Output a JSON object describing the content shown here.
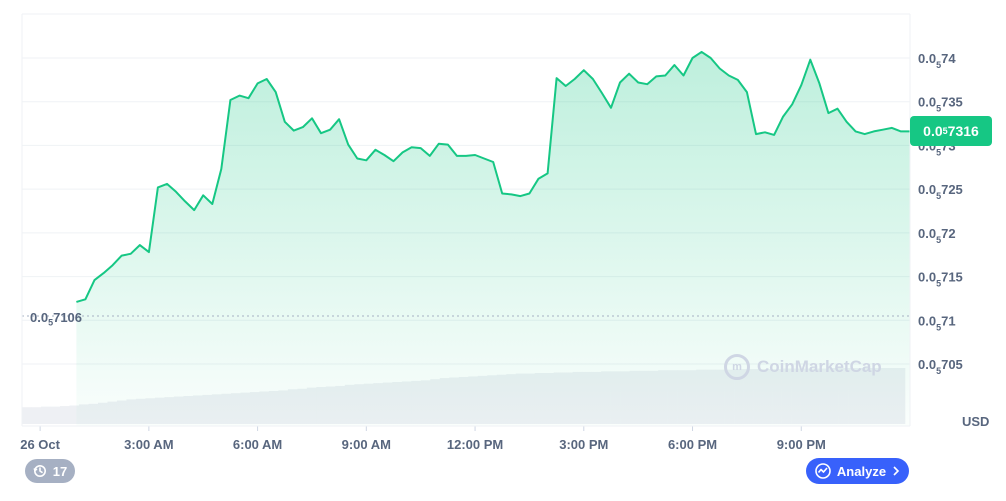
{
  "chart_data": {
    "type": "area",
    "title": "",
    "xlabel": "",
    "ylabel": "",
    "currency_label": "USD",
    "x_ticks": [
      "26 Oct",
      "3:00 AM",
      "6:00 AM",
      "9:00 AM",
      "12:00 PM",
      "3:00 PM",
      "6:00 PM",
      "9:00 PM"
    ],
    "x_tick_hours": [
      0,
      3,
      6,
      9,
      12,
      15,
      18,
      21
    ],
    "x_range_hours": [
      -0.5,
      24.0
    ],
    "y_ticks": [
      {
        "prefix": "0.0",
        "sub": "5",
        "rest": "74",
        "value": 7.4e-06
      },
      {
        "prefix": "0.0",
        "sub": "5",
        "rest": "735",
        "value": 7.35e-06
      },
      {
        "prefix": "0.0",
        "sub": "5",
        "rest": "73",
        "value": 7.3e-06
      },
      {
        "prefix": "0.0",
        "sub": "5",
        "rest": "725",
        "value": 7.25e-06
      },
      {
        "prefix": "0.0",
        "sub": "5",
        "rest": "72",
        "value": 7.2e-06
      },
      {
        "prefix": "0.0",
        "sub": "5",
        "rest": "715",
        "value": 7.15e-06
      },
      {
        "prefix": "0.0",
        "sub": "5",
        "rest": "71",
        "value": 7.1e-06
      },
      {
        "prefix": "0.0",
        "sub": "5",
        "rest": "705",
        "value": 7.05e-06
      }
    ],
    "y_unit_note": "values in units of 1e-6 USD",
    "ylim": [
      7.0,
      7.42
    ],
    "open_price": {
      "prefix": "0.0",
      "sub": "5",
      "rest": "7106",
      "value": 7.106
    },
    "current_price": {
      "prefix": "0.0",
      "sub": "5",
      "rest": "7316",
      "value": 7.316
    },
    "series": [
      {
        "x": [
          1.0,
          1.25,
          1.5,
          1.75,
          2.0,
          2.25,
          2.5,
          2.75,
          3.0,
          3.25,
          3.5,
          3.75,
          4.0,
          4.25,
          4.5,
          4.75,
          5.0,
          5.25,
          5.5,
          5.75,
          6.0,
          6.25,
          6.5,
          6.75,
          7.0,
          7.25,
          7.5,
          7.75,
          8.0,
          8.25,
          8.5,
          8.75,
          9.0,
          9.25,
          9.5,
          9.75,
          10.0,
          10.25,
          10.5,
          10.75,
          11.0,
          11.25,
          11.5,
          11.75,
          12.0,
          12.25,
          12.5,
          12.75,
          13.0,
          13.25,
          13.5,
          13.75,
          14.0,
          14.25,
          14.5,
          14.75,
          15.0,
          15.25,
          15.5,
          15.75,
          16.0,
          16.25,
          16.5,
          16.75,
          17.0,
          17.25,
          17.5,
          17.75,
          18.0,
          18.25,
          18.5,
          18.75,
          19.0,
          19.25,
          19.5,
          19.75,
          20.0,
          20.25,
          20.5,
          20.75,
          21.0,
          21.25,
          21.5,
          21.75,
          22.0,
          22.25,
          22.5,
          22.75,
          23.0,
          23.25,
          23.5,
          23.75,
          24.0
        ],
        "values": [
          7.121,
          7.124,
          7.146,
          7.154,
          7.163,
          7.174,
          7.176,
          7.186,
          7.178,
          7.252,
          7.256,
          7.247,
          7.236,
          7.226,
          7.243,
          7.233,
          7.273,
          7.352,
          7.357,
          7.354,
          7.371,
          7.376,
          7.361,
          7.327,
          7.317,
          7.321,
          7.331,
          7.314,
          7.318,
          7.33,
          7.301,
          7.285,
          7.283,
          7.295,
          7.289,
          7.282,
          7.292,
          7.298,
          7.297,
          7.288,
          7.302,
          7.301,
          7.288,
          7.288,
          7.289,
          7.285,
          7.281,
          7.245,
          7.244,
          7.242,
          7.245,
          7.262,
          7.268,
          7.377,
          7.368,
          7.376,
          7.386,
          7.376,
          7.36,
          7.343,
          7.372,
          7.382,
          7.372,
          7.37,
          7.379,
          7.38,
          7.392,
          7.38,
          7.4,
          7.407,
          7.4,
          7.388,
          7.38,
          7.375,
          7.361,
          7.313,
          7.315,
          7.312,
          7.333,
          7.347,
          7.369,
          7.398,
          7.371,
          7.337,
          7.342,
          7.327,
          7.316,
          7.313,
          7.316,
          7.318,
          7.32,
          7.316,
          7.316
        ]
      }
    ],
    "volume": {
      "note": "relative volume bars, cumulative style",
      "values": [
        0.3,
        0.3,
        0.31,
        0.31,
        0.32,
        0.33,
        0.35,
        0.36,
        0.38,
        0.4,
        0.42,
        0.44,
        0.45,
        0.46,
        0.47,
        0.48,
        0.49,
        0.5,
        0.51,
        0.52,
        0.53,
        0.54,
        0.55,
        0.56,
        0.57,
        0.58,
        0.59,
        0.6,
        0.62,
        0.63,
        0.65,
        0.66,
        0.67,
        0.68,
        0.7,
        0.71,
        0.72,
        0.73,
        0.74,
        0.75,
        0.76,
        0.77,
        0.78,
        0.8,
        0.82,
        0.83,
        0.84,
        0.85,
        0.86,
        0.87,
        0.88,
        0.89,
        0.9,
        0.9,
        0.91,
        0.91,
        0.92,
        0.92,
        0.93,
        0.93,
        0.93,
        0.94,
        0.94,
        0.94,
        0.95,
        0.95,
        0.95,
        0.96,
        0.96,
        0.96,
        0.96,
        0.97,
        0.97,
        0.97,
        0.97,
        0.98,
        0.98,
        0.98,
        0.98,
        0.98,
        0.99,
        0.99,
        0.99,
        0.99,
        0.99,
        1.0,
        1.0,
        1.0,
        1.0,
        1.0,
        1.0,
        1.0,
        1.0
      ]
    },
    "grid": true,
    "line_color": "#16c784",
    "area_color_top": "#16c784",
    "volume_color": "#eef0f4"
  },
  "ui": {
    "history_count": "17",
    "analyze_label": "Analyze",
    "watermark_text": "CoinMarketCap",
    "accent_blue": "#3861fb",
    "up_green": "#16c784",
    "history_icon": "history-clock-icon",
    "analyze_icon": "analyze-chart-icon",
    "chevron_icon": "chevron-right-icon"
  }
}
